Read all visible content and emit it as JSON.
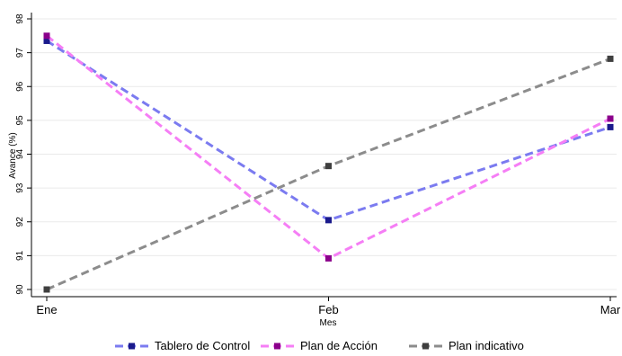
{
  "chart_data": {
    "type": "line",
    "title": "",
    "xlabel": "Mes",
    "ylabel": "Avance (%)",
    "categories": [
      "Ene",
      "Feb",
      "Mar"
    ],
    "ylim": [
      90,
      98
    ],
    "yticks": [
      90,
      91,
      92,
      93,
      94,
      95,
      96,
      97,
      98
    ],
    "grid": true,
    "legend_position": "bottom",
    "series": [
      {
        "name": "Tablero de Control",
        "values": [
          97.35,
          92.05,
          94.8
        ],
        "line_color": "#7b7bf0",
        "marker_color": "#1a1a8c"
      },
      {
        "name": "Plan de Acción",
        "values": [
          97.5,
          90.92,
          95.05
        ],
        "line_color": "#f57ef5",
        "marker_color": "#8b008b"
      },
      {
        "name": "Plan indicativo",
        "values": [
          90.0,
          93.65,
          96.82
        ],
        "line_color": "#8c8c8c",
        "marker_color": "#3f3f3f"
      }
    ]
  }
}
